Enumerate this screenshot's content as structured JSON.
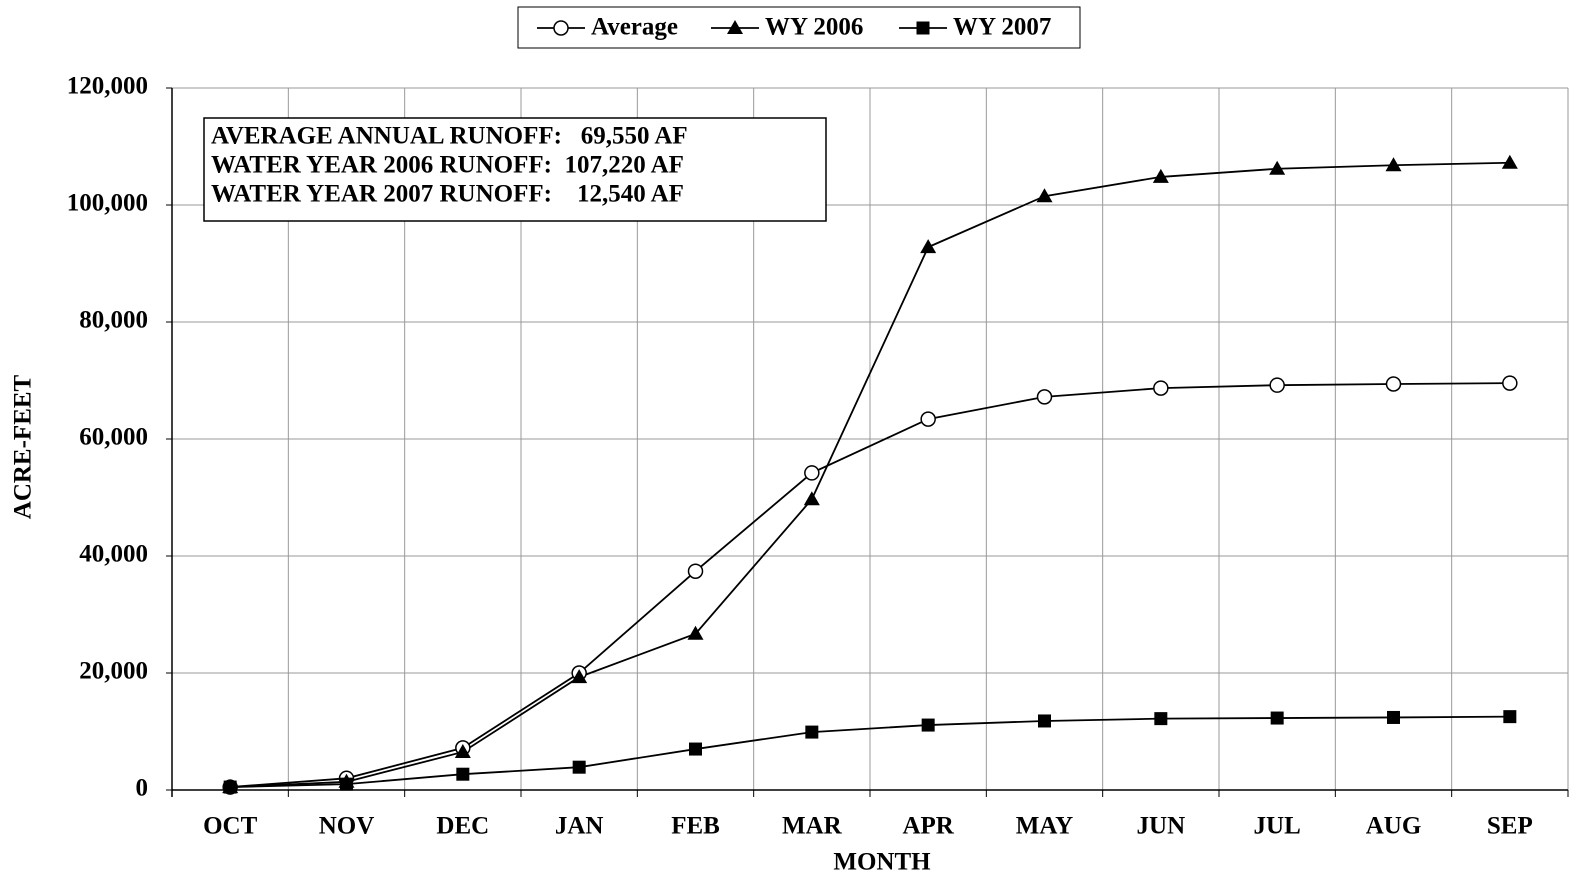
{
  "chart_data": {
    "type": "line",
    "x_label": "MONTH",
    "y_label": "ACRE-FEET",
    "categories": [
      "OCT",
      "NOV",
      "DEC",
      "JAN",
      "FEB",
      "MAR",
      "APR",
      "MAY",
      "JUN",
      "JUL",
      "AUG",
      "SEP"
    ],
    "series": [
      {
        "name": "Average",
        "color": "#000000",
        "marker": "circle",
        "values": [
          500,
          2000,
          7200,
          20000,
          37400,
          54200,
          63400,
          67200,
          68700,
          69200,
          69400,
          69550
        ]
      },
      {
        "name": "WY 2006",
        "color": "#000000",
        "marker": "triangle",
        "values": [
          500,
          1400,
          6500,
          19300,
          26700,
          49700,
          92800,
          101500,
          104800,
          106200,
          106800,
          107220
        ]
      },
      {
        "name": "WY 2007",
        "color": "#000000",
        "marker": "square",
        "values": [
          500,
          1000,
          2700,
          3900,
          7000,
          9900,
          11100,
          11800,
          12200,
          12300,
          12400,
          12540
        ]
      }
    ],
    "ylim": [
      0,
      120000
    ],
    "yticks": [
      0,
      {
        "value": 20000,
        "label": "20,000"
      },
      {
        "value": 40000,
        "label": "40,000"
      },
      {
        "value": 60000,
        "label": "60,000"
      },
      {
        "value": 80000,
        "label": "80,000"
      },
      {
        "value": 100000,
        "label": "100,000"
      },
      {
        "value": 120000,
        "label": "120,000"
      }
    ],
    "grid": true,
    "legend": "top",
    "annotations": [
      "AVERAGE ANNUAL RUNOFF:   69,550 AF",
      "WATER YEAR 2006 RUNOFF:  107,220 AF",
      "WATER YEAR 2007 RUNOFF:    12,540 AF"
    ]
  }
}
